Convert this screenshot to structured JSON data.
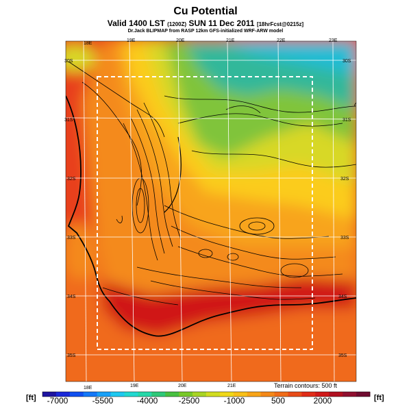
{
  "header": {
    "title": "Cu Potential",
    "valid_prefix": "Valid 1400 LST",
    "valid_utc": "(1200Z)",
    "valid_date": "SUN 11 Dec 2011",
    "forecast_info": "[18hrFcst@0215z]",
    "model_line": "Dr.Jack BLIPMAP from RASP 12km GFS-initialized WRF-ARW model"
  },
  "map": {
    "lon_labels_top": [
      "18E",
      "19E",
      "20E",
      "21E",
      "22E",
      "23E"
    ],
    "lon_labels_bottom": [
      "18E",
      "19E",
      "20E",
      "21E"
    ],
    "lat_labels_left": [
      "30S",
      "31S",
      "32S",
      "33S",
      "34S",
      "35S"
    ],
    "lat_labels_right": [
      "30S",
      "31S",
      "32S",
      "33S",
      "34S",
      "35S"
    ],
    "terrain_contours": "Terrain contours: 500 ft",
    "colors": {
      "ocean": "#e8231d",
      "deep_red": "#c8141c",
      "orange": "#f57a1e",
      "light_orange": "#f9a21f",
      "yellow": "#fbd21e",
      "yellow_green": "#c8dc2a",
      "green": "#7ac43c",
      "teal": "#2ab69a",
      "cyan": "#20bcd0",
      "grid": "#ffffff",
      "contour": "#000000"
    }
  },
  "colorbar": {
    "unit_left": "[ft]",
    "unit_right": "[ft]",
    "labels": [
      "-7000",
      "-5500",
      "-4000",
      "-2500",
      "-1000",
      "500",
      "2000"
    ],
    "colors": [
      "#1e14a0",
      "#1a28d8",
      "#1050f0",
      "#1478f8",
      "#18a0f8",
      "#1ec8f0",
      "#22d8d0",
      "#26d8a8",
      "#2ec878",
      "#48c040",
      "#78c828",
      "#a8d424",
      "#d0dc20",
      "#f0d818",
      "#f8c018",
      "#f8a418",
      "#f48818",
      "#f06c18",
      "#e84c18",
      "#e02c18",
      "#d01818",
      "#b01020",
      "#901030",
      "#700c30"
    ]
  }
}
